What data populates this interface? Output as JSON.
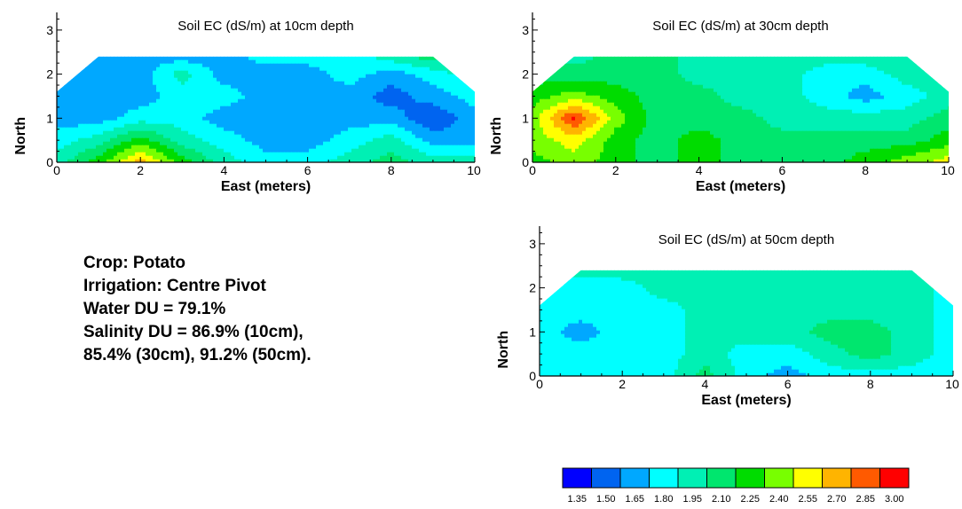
{
  "chart_data": [
    {
      "type": "heatmap",
      "title": "Soil EC (dS/m) at 10cm depth",
      "xlabel": "East (meters)",
      "ylabel": "North",
      "xlim": [
        0,
        10
      ],
      "ylim": [
        0,
        3.4
      ],
      "x_ticks": [
        "0",
        "2",
        "4",
        "6",
        "8",
        "10"
      ],
      "y_ticks": [
        "0",
        "1",
        "2",
        "3"
      ],
      "field_outline": [
        [
          0,
          0
        ],
        [
          10,
          0
        ],
        [
          10,
          1.6
        ],
        [
          9,
          2.4
        ],
        [
          1,
          2.4
        ],
        [
          0,
          1.6
        ]
      ],
      "x": [
        0,
        1,
        2,
        3,
        4,
        5,
        6,
        7,
        8,
        9,
        10
      ],
      "y": [
        0,
        0.5,
        1.0,
        1.5,
        2.0,
        2.4
      ],
      "z": [
        [
          1.95,
          2.25,
          2.7,
          2.25,
          1.95,
          1.8,
          1.8,
          1.95,
          2.1,
          1.95,
          1.95
        ],
        [
          1.8,
          1.95,
          2.25,
          1.95,
          1.8,
          1.65,
          1.65,
          1.8,
          1.95,
          1.65,
          1.65
        ],
        [
          1.65,
          1.65,
          1.8,
          1.8,
          1.65,
          1.65,
          1.65,
          1.65,
          1.65,
          1.45,
          1.65
        ],
        [
          1.65,
          1.65,
          1.65,
          1.8,
          1.8,
          1.65,
          1.65,
          1.65,
          1.5,
          1.65,
          1.8
        ],
        [
          1.65,
          1.65,
          1.65,
          1.95,
          1.65,
          1.65,
          1.65,
          1.8,
          1.65,
          1.8,
          1.95
        ],
        [
          1.65,
          1.65,
          1.65,
          1.65,
          1.65,
          1.8,
          1.8,
          1.8,
          1.95,
          2.1,
          2.1
        ]
      ]
    },
    {
      "type": "heatmap",
      "title": "Soil EC (dS/m) at 30cm depth",
      "xlabel": "East (meters)",
      "ylabel": "North",
      "xlim": [
        0,
        10
      ],
      "ylim": [
        0,
        3.4
      ],
      "x_ticks": [
        "0",
        "2",
        "4",
        "6",
        "8",
        "10"
      ],
      "y_ticks": [
        "0",
        "1",
        "2",
        "3"
      ],
      "field_outline": [
        [
          0,
          0
        ],
        [
          10,
          0
        ],
        [
          10,
          1.6
        ],
        [
          9,
          2.4
        ],
        [
          1,
          2.4
        ],
        [
          0,
          1.6
        ]
      ],
      "x": [
        0,
        1,
        2,
        3,
        4,
        5,
        6,
        7,
        8,
        9,
        10
      ],
      "y": [
        0,
        0.5,
        1.0,
        1.5,
        2.0,
        2.4
      ],
      "z": [
        [
          2.25,
          2.4,
          2.25,
          2.1,
          2.25,
          2.1,
          2.1,
          2.1,
          2.25,
          2.4,
          2.55
        ],
        [
          2.4,
          2.55,
          2.25,
          2.1,
          2.25,
          2.1,
          2.1,
          2.1,
          2.1,
          2.1,
          2.25
        ],
        [
          2.4,
          2.95,
          2.4,
          2.1,
          2.1,
          2.1,
          1.95,
          1.95,
          1.95,
          1.95,
          2.1
        ],
        [
          2.25,
          2.4,
          2.25,
          2.1,
          2.1,
          1.95,
          1.95,
          1.8,
          1.65,
          1.8,
          1.95
        ],
        [
          2.1,
          2.1,
          2.1,
          2.1,
          1.95,
          1.95,
          1.95,
          1.8,
          1.8,
          1.95,
          1.95
        ],
        [
          1.95,
          1.95,
          2.1,
          2.1,
          1.95,
          1.95,
          1.95,
          1.95,
          1.95,
          1.95,
          1.95
        ]
      ]
    },
    {
      "type": "heatmap",
      "title": "Soil EC (dS/m) at 50cm depth",
      "xlabel": "East (meters)",
      "ylabel": "North",
      "xlim": [
        0,
        10
      ],
      "ylim": [
        0,
        3.4
      ],
      "x_ticks": [
        "0",
        "2",
        "4",
        "6",
        "8",
        "10"
      ],
      "y_ticks": [
        "0",
        "1",
        "2",
        "3"
      ],
      "field_outline": [
        [
          0,
          0
        ],
        [
          10,
          0
        ],
        [
          10,
          1.6
        ],
        [
          9,
          2.4
        ],
        [
          1,
          2.4
        ],
        [
          0,
          1.6
        ]
      ],
      "x": [
        0,
        1,
        2,
        3,
        4,
        5,
        6,
        7,
        8,
        9,
        10
      ],
      "y": [
        0,
        0.5,
        1.0,
        1.5,
        2.0,
        2.4
      ],
      "z": [
        [
          1.8,
          1.8,
          1.8,
          1.8,
          2.1,
          1.8,
          1.65,
          1.8,
          1.8,
          1.8,
          1.8
        ],
        [
          1.8,
          1.8,
          1.8,
          1.8,
          1.95,
          1.8,
          1.8,
          1.95,
          2.1,
          1.95,
          1.8
        ],
        [
          1.8,
          1.65,
          1.8,
          1.8,
          1.95,
          1.95,
          1.95,
          2.1,
          2.1,
          1.95,
          1.8
        ],
        [
          1.8,
          1.8,
          1.8,
          1.8,
          1.95,
          1.95,
          1.95,
          1.95,
          1.95,
          1.95,
          1.8
        ],
        [
          1.8,
          1.8,
          1.8,
          1.95,
          1.95,
          1.95,
          1.95,
          1.95,
          1.95,
          1.95,
          1.8
        ],
        [
          1.95,
          1.95,
          1.95,
          1.95,
          1.95,
          1.95,
          1.95,
          1.95,
          1.95,
          1.95,
          1.95
        ]
      ]
    }
  ],
  "colorbar": {
    "labels": [
      "1.35",
      "1.50",
      "1.65",
      "1.80",
      "1.95",
      "2.10",
      "2.25",
      "2.40",
      "2.55",
      "2.70",
      "2.85",
      "3.00"
    ],
    "levels": [
      1.35,
      1.5,
      1.65,
      1.8,
      1.95,
      2.1,
      2.25,
      2.4,
      2.55,
      2.7,
      2.85,
      3.0
    ],
    "colors": [
      "#0000ff",
      "#0064f0",
      "#00a8ff",
      "#00ffff",
      "#00f0b4",
      "#00e66e",
      "#00dc00",
      "#78ff00",
      "#ffff00",
      "#ffb400",
      "#ff5a00",
      "#ff0000"
    ]
  },
  "info": {
    "crop": "Crop: Potato",
    "irrigation": "Irrigation: Centre Pivot",
    "water_du": "Water DU = 79.1%",
    "salinity_du_1": "Salinity DU = 86.9% (10cm),",
    "salinity_du_2": "85.4% (30cm), 91.2% (50cm)."
  }
}
